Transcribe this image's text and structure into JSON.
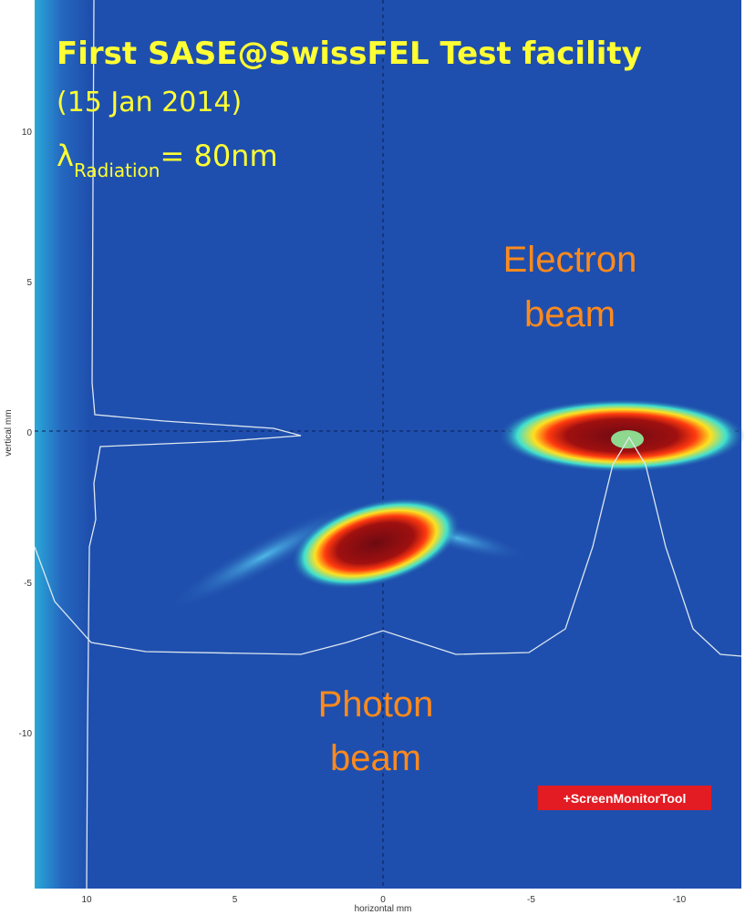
{
  "header": {
    "title": "First SASE@SwissFEL Test facility",
    "date": "(15 Jan 2014)",
    "lambda": {
      "symbol": "λ",
      "subscript": "Radiation",
      "text": "= 80nm"
    }
  },
  "annotations": {
    "electron": [
      "Electron",
      "beam"
    ],
    "photon": [
      "Photon",
      "beam"
    ]
  },
  "axes": {
    "x_label": "horizontal mm",
    "y_label": "vertical mm",
    "x_ticks": [
      10,
      5,
      0,
      -5,
      -10
    ],
    "y_ticks": [
      10,
      5,
      0,
      -5,
      -10
    ]
  },
  "badge": "+ScreenMonitorTool"
}
